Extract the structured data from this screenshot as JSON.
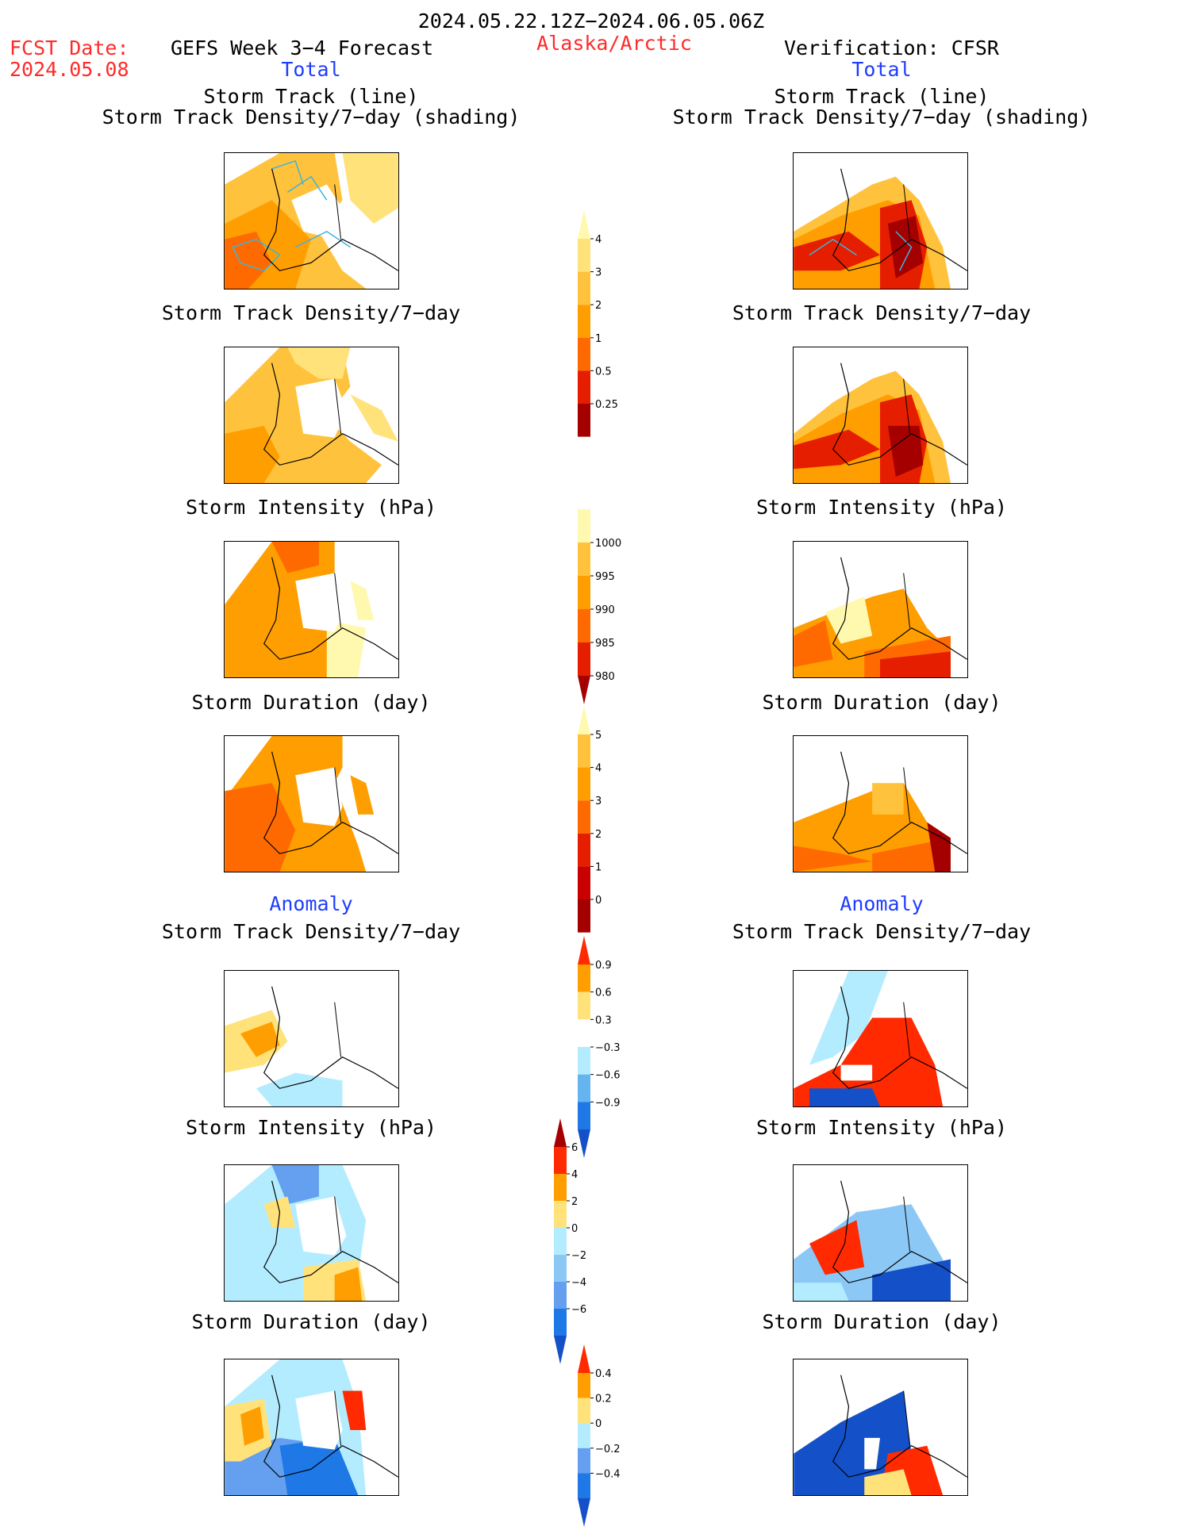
{
  "header": {
    "date_range": "2024.05.22.12Z−2024.06.05.06Z",
    "fcst_label": "FCST Date:",
    "fcst_date": "2024.05.08",
    "left_title": "GEFS Week 3−4 Forecast",
    "region": "Alaska/Arctic",
    "right_title": "Verification: CFSR",
    "total_left": "Total",
    "total_right": "Total",
    "anomaly_left": "Anomaly",
    "anomaly_right": "Anomaly"
  },
  "panels": {
    "p1_line1": "Storm Track (line)",
    "p1_line2": "Storm Track Density/7−day (shading)",
    "density": "Storm Track Density/7−day",
    "intensity": "Storm Intensity (hPa)",
    "duration": "Storm Duration (day)"
  },
  "colorbars": {
    "density": {
      "ticks": [
        "0.25",
        "0.5",
        "1",
        "2",
        "3",
        "4"
      ],
      "colors": [
        "#fff9b0",
        "#ffe27a",
        "#ffc23c",
        "#ff9e00",
        "#ff6a00",
        "#e61e00",
        "#a50000"
      ]
    },
    "intensity": {
      "ticks": [
        "1000",
        "995",
        "990",
        "985",
        "980"
      ],
      "colors": [
        "#fff9b0",
        "#ffc23c",
        "#ff9e00",
        "#ff6a00",
        "#e61e00",
        "#a50000"
      ]
    },
    "duration": {
      "ticks": [
        "0",
        "1",
        "2",
        "3",
        "4",
        "5"
      ],
      "colors": [
        "#fff9b0",
        "#ffc23c",
        "#ff9e00",
        "#ff6a00",
        "#e61e00",
        "#c80000",
        "#a50000"
      ]
    },
    "density_anom": {
      "ticks": [
        "0.9",
        "0.6",
        "0.3",
        "−0.3",
        "−0.6",
        "−0.9"
      ],
      "colors": [
        "#ff2a00",
        "#ff9e00",
        "#ffe27a",
        "#ffffff",
        "#b4ecff",
        "#64b4f0",
        "#1e78e6",
        "#1450c8"
      ]
    },
    "intensity_anom": {
      "ticks": [
        "6",
        "4",
        "2",
        "0",
        "−2",
        "−4",
        "−6"
      ],
      "colors": [
        "#a50000",
        "#ff2a00",
        "#ff9e00",
        "#ffe27a",
        "#b4ecff",
        "#8cc8f5",
        "#64a0ef",
        "#1e78e6",
        "#1450c8"
      ]
    },
    "duration_anom": {
      "ticks": [
        "0.4",
        "0.2",
        "0",
        "−0.2",
        "−0.4"
      ],
      "colors": [
        "#ff2a00",
        "#ff9e00",
        "#ffe27a",
        "#b4ecff",
        "#64a0ef",
        "#1e78e6",
        "#1450c8"
      ]
    }
  },
  "colors": {
    "title_red": "#ff2a2a",
    "label_blue": "#1e3cff",
    "storm_track_line": "#3cb4dc"
  }
}
